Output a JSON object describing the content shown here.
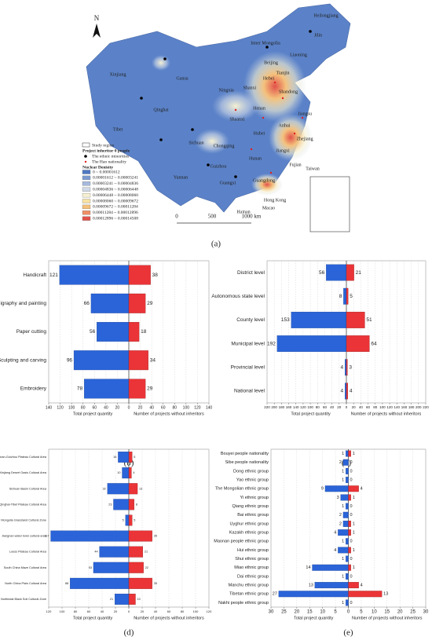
{
  "map": {
    "panel_label": "(a)",
    "north": "N",
    "places": [
      "Heilongjiang",
      "Jilin",
      "Liaoning",
      "Inner Mongolia",
      "Xinjiang",
      "Gansu",
      "Qinghai",
      "Tibet",
      "Ningxia",
      "Shaanxi",
      "Shanxi",
      "Hebei",
      "Beijing",
      "Tianjin",
      "Shandong",
      "Henan",
      "Jiangsu",
      "Anhui",
      "Hubei",
      "Sichuan",
      "Chongqing",
      "Hunan",
      "Jiangxi",
      "Zhejiang",
      "Guizhou",
      "Yunnan",
      "Guangxi",
      "Guangdong",
      "Fujian",
      "Taiwan",
      "Hainan",
      "Hong Kong",
      "Macao"
    ],
    "legend": {
      "study_region": "Study region",
      "title": "Project inheritor 0 people",
      "minorities": "The ethnic minorities",
      "han": "The Han nationality",
      "density_title": "Nuclear Denisity",
      "density_ranges": [
        "0 ~ 0.00001612",
        "0.00001612 ~ 0.00003241",
        "0.00003241 ~ 0.00004836",
        "0.00004836 ~ 0.00006448",
        "0.00006448 ~ 0.00008060",
        "0.00008060 ~ 0.00009672",
        "0.00009672 ~ 0.00011284",
        "0.00011284 ~ 0.00012896",
        "0.00012896 ~ 0.00014508"
      ],
      "density_colors": [
        "#4f78c2",
        "#7b9bd0",
        "#a6badc",
        "#cfd8e6",
        "#f6f1d2",
        "#f8e2a4",
        "#f4c17c",
        "#ef8f66",
        "#e1524a"
      ]
    },
    "scale": [
      "0",
      "500",
      "1000 km"
    ]
  },
  "chart_data": [
    {
      "type": "bar",
      "panel_label": "(b)",
      "categories": [
        "Handicraft",
        "Calligraphy and painting",
        "Paper cutting",
        "Sculpting and carving",
        "Embroidery"
      ],
      "series": [
        {
          "name": "Total project quantity",
          "color": "#2a64d8",
          "values": [
            121,
            66,
            56,
            96,
            78
          ]
        },
        {
          "name": "Number of projects without inheritors",
          "color": "#ea3437",
          "values": [
            38,
            29,
            18,
            34,
            29
          ]
        }
      ],
      "xlim": [
        0,
        140
      ],
      "xticks": [
        0,
        20,
        40,
        60,
        80,
        100,
        120,
        140
      ]
    },
    {
      "type": "bar",
      "panel_label": "(c)",
      "categories": [
        "District level",
        "Autonomous state level",
        "County level",
        "Municipal level",
        "Provincial level",
        "National level"
      ],
      "series": [
        {
          "name": "Total project quantity",
          "color": "#2a64d8",
          "values": [
            56,
            8,
            153,
            192,
            4,
            4
          ]
        },
        {
          "name": "Number of projects without inheritors",
          "color": "#ea3437",
          "values": [
            21,
            5,
            51,
            64,
            3,
            4
          ]
        }
      ],
      "xlim": [
        0,
        220
      ],
      "xticks": [
        0,
        20,
        40,
        60,
        80,
        100,
        120,
        140,
        160,
        180,
        200,
        220
      ]
    },
    {
      "type": "bar",
      "panel_label": "(d)",
      "categories": [
        "Yunnan-Guizhou Plateau Cultural Area",
        "Xinjiang Desert Oasis Cultural Area",
        "Sichuan Basin Cultural Area",
        "Qinghai-Tibet Plateau Cultural Area",
        "Inner Mongolia Grassland Cultural Zone",
        "Jiangnan water town cultural area",
        "Loess Plateau Cultural Area",
        "South China Maze Cultural Area",
        "North China Plain Cultural Area",
        "Northeast Black Soil Cultural Zone"
      ],
      "series": [
        {
          "name": "Total project quantity",
          "color": "#2a64d8",
          "values": [
            16,
            10,
            32,
            23,
            5,
            117,
            44,
            53,
            88,
            21
          ]
        },
        {
          "name": "Number of projects without inheritors",
          "color": "#ea3437",
          "values": [
            5,
            4,
            13,
            8,
            5,
            35,
            21,
            22,
            35,
            10
          ]
        }
      ],
      "xlim": [
        0,
        120
      ],
      "xticks": [
        0,
        20,
        40,
        60,
        80,
        100,
        120
      ]
    },
    {
      "type": "bar",
      "panel_label": "(e)",
      "categories": [
        "Bouyei people nationality",
        "Sibe people nationality",
        "Dong ethnic group",
        "Yao ethnic group",
        "The Mongolian ethnic group",
        "Yi ethnic group",
        "Qiang ethnic group",
        "Bai ethnic group",
        "Uyghur ethnic group",
        "Kazakh ethnic group",
        "Maonan people ethnic group",
        "Hui ethnic group",
        "Shui ethnic group",
        "Miao ethnic group",
        "Dai ethnic group",
        "Manchu ethnic group",
        "Tibetan ethnic group",
        "Nakhi people ethnic group"
      ],
      "series": [
        {
          "name": "Total project quantity",
          "color": "#2a64d8",
          "values": [
            1,
            2,
            1,
            1,
            9,
            3,
            1,
            2,
            2,
            4,
            1,
            4,
            1,
            14,
            1,
            13,
            27,
            1
          ]
        },
        {
          "name": "Number of projects without inheritors",
          "color": "#ea3437",
          "values": [
            1,
            0,
            0,
            0,
            4,
            1,
            0,
            0,
            1,
            1,
            0,
            1,
            0,
            1,
            0,
            4,
            13,
            0
          ]
        }
      ],
      "xlim": [
        0,
        30
      ],
      "xticks": [
        0,
        5,
        10,
        15,
        20,
        25,
        30
      ]
    }
  ]
}
